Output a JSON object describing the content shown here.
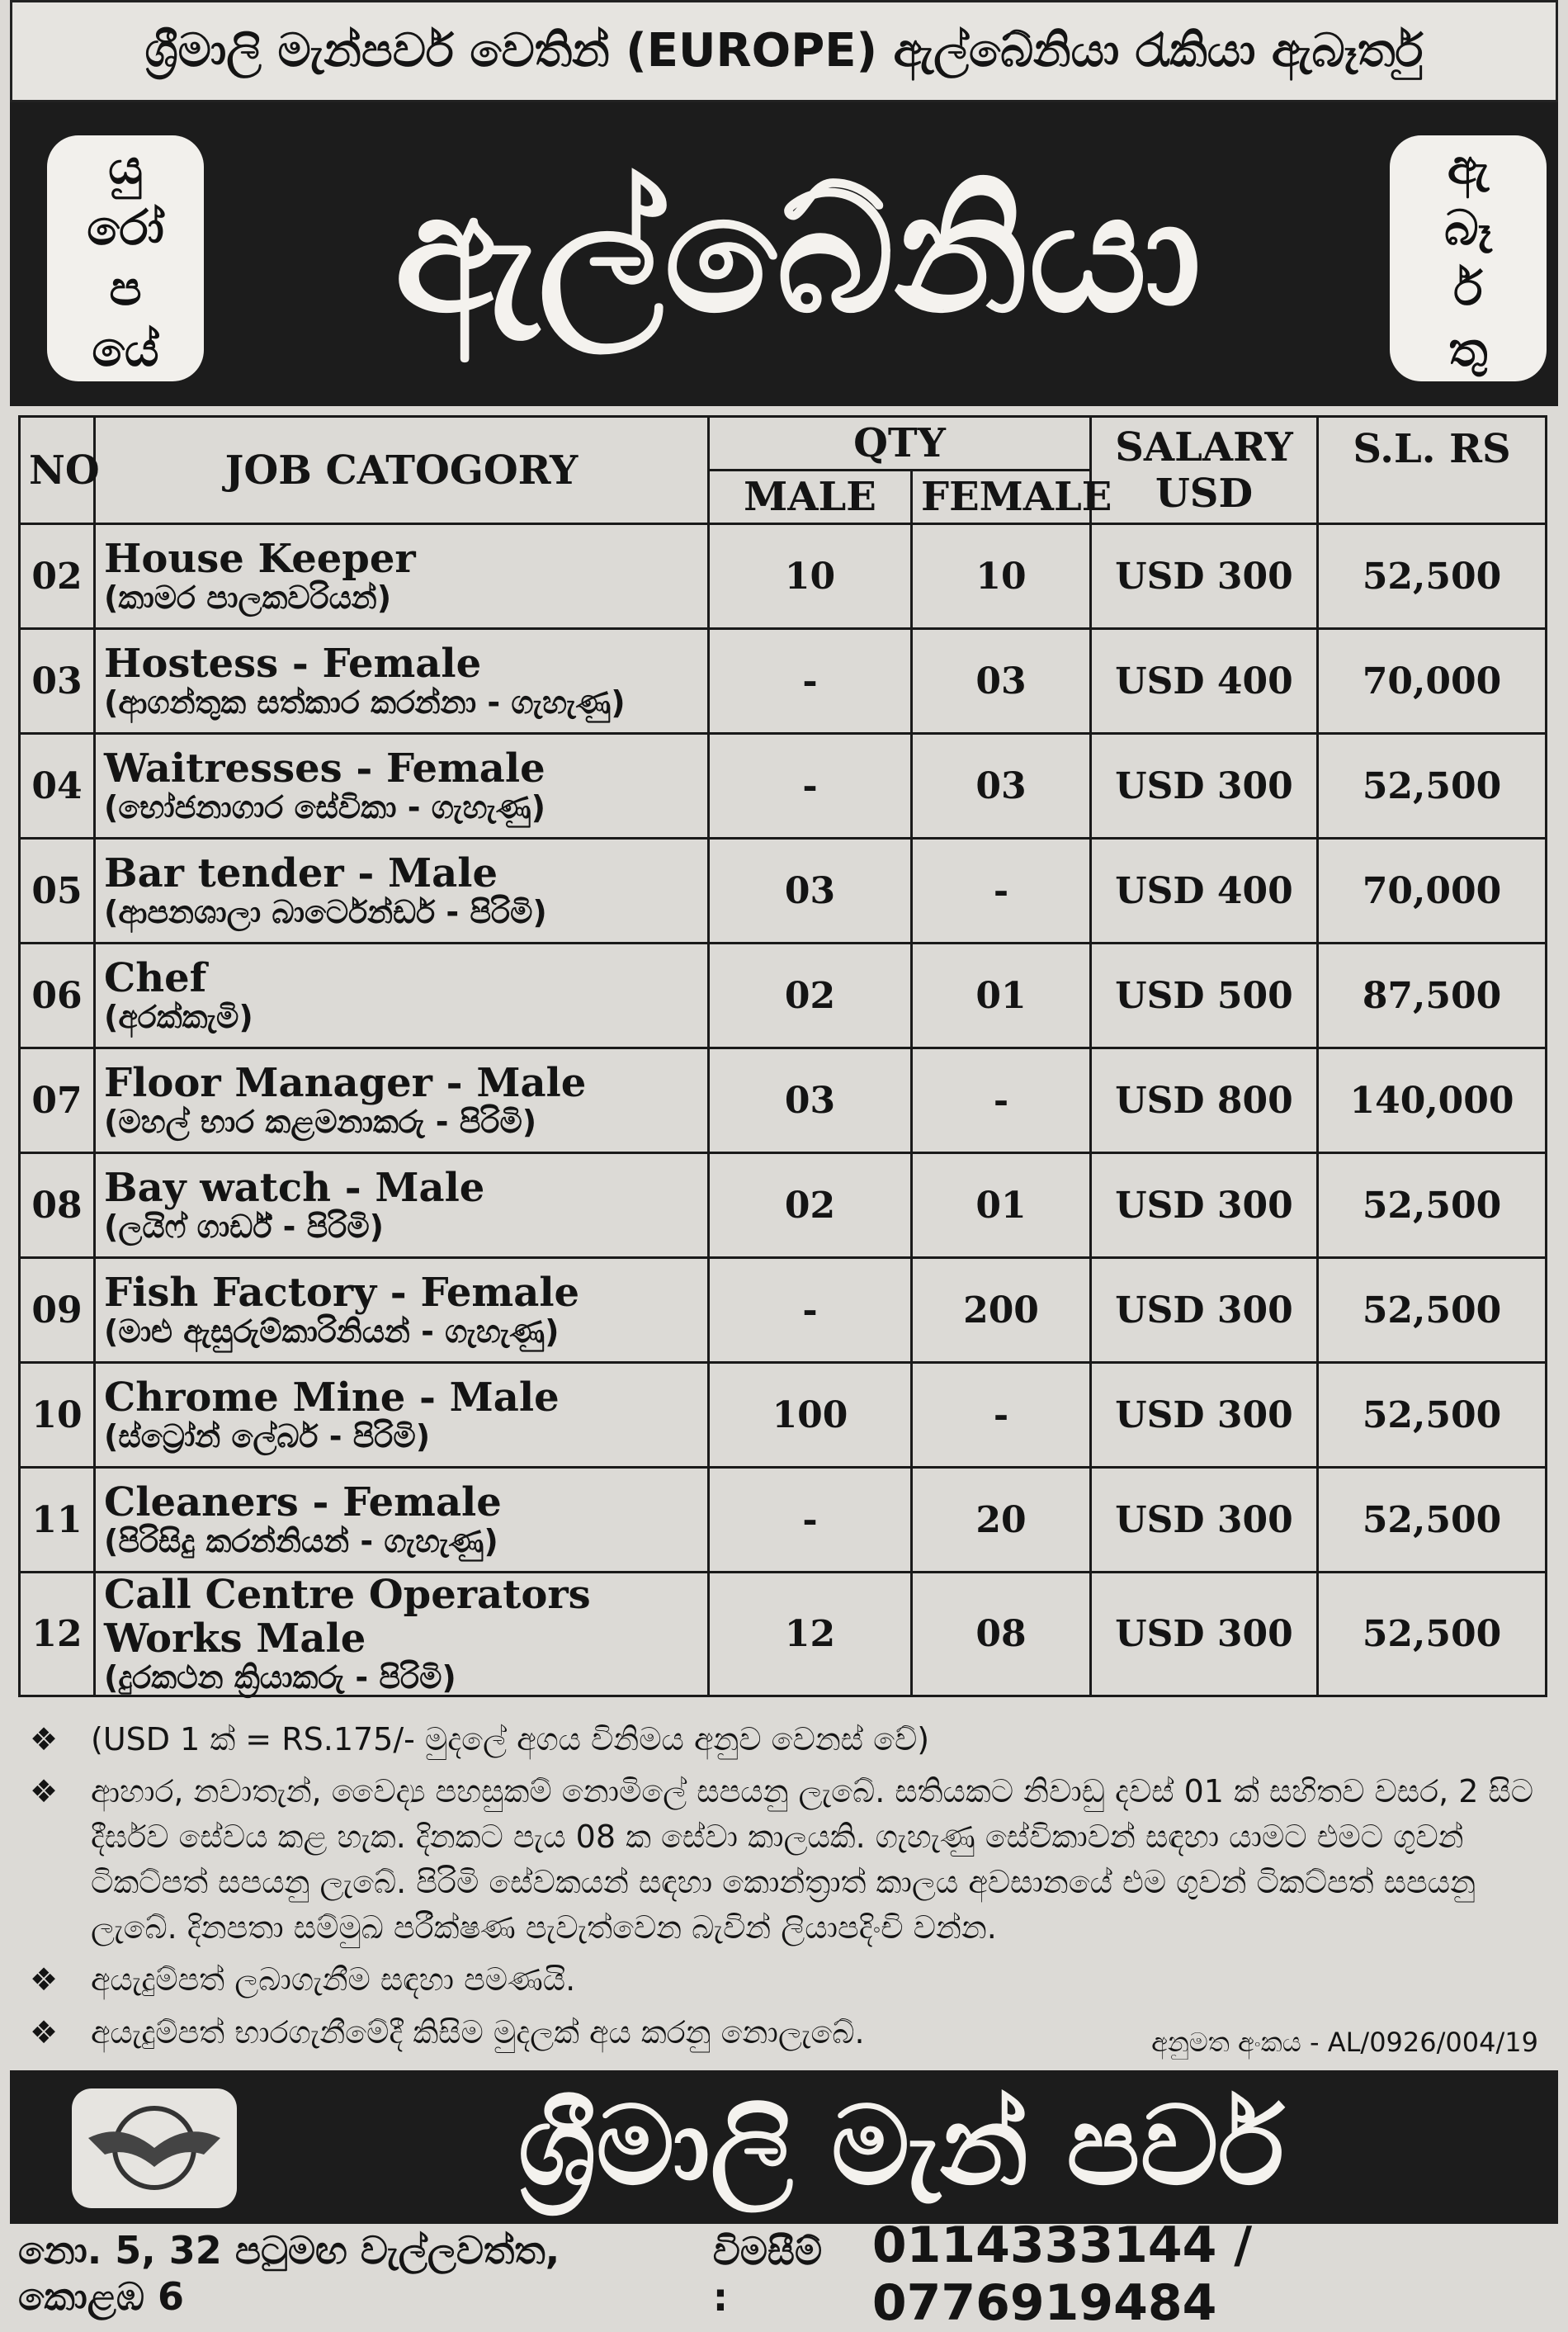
{
  "header": {
    "title": "ශ්‍රීමාලි මැන්පවර් වෙතින් (EUROPE) ඇල්බේනියා රැකියා ඇබෑර්තු"
  },
  "banner": {
    "left": [
      "යු",
      "රෝ",
      "ප",
      "යේ"
    ],
    "title": "ඇල්බේනියා",
    "right": [
      "ඇ",
      "බෑ",
      "ර්",
      "තු"
    ]
  },
  "table": {
    "headers": {
      "no": "NO",
      "job": "JOB CATOGORY",
      "qty": "QTY",
      "male": "MALE",
      "female": "FEMALE",
      "salary": [
        "SALARY",
        "USD"
      ],
      "sl": "S.L. RS"
    },
    "rows": [
      [
        "02",
        "House Keeper",
        "(කාමර පාලකවරියන්)",
        "10",
        "10",
        "USD 300",
        "52,500"
      ],
      [
        "03",
        "Hostess - Female",
        "(ආගන්තුක සත්කාර කරන්නා - ගැහැණු)",
        "-",
        "03",
        "USD 400",
        "70,000"
      ],
      [
        "04",
        "Waitresses - Female",
        "(භෝජනාගාර සේවිකා - ගැහැණු)",
        "-",
        "03",
        "USD 300",
        "52,500"
      ],
      [
        "05",
        "Bar tender - Male",
        "(ආපනශාලා බාර්ටෙන්ඩර් - පිරිමි)",
        "03",
        "-",
        "USD 400",
        "70,000"
      ],
      [
        "06",
        "Chef",
        "(අරක්කැමි)",
        "02",
        "01",
        "USD 500",
        "87,500"
      ],
      [
        "07",
        "Floor Manager - Male",
        "(මහල් භාර කළමනාකරු - පිරිමි)",
        "03",
        "-",
        "USD 800",
        "140,000"
      ],
      [
        "08",
        "Bay watch - Male",
        "(ලයිෆ් ගාර්ඩ් - පිරිමි)",
        "02",
        "01",
        "USD 300",
        "52,500"
      ],
      [
        "09",
        "Fish Factory - Female",
        "(මාළු ඇසුරුම්කාරිනියන් - ගැහැණු)",
        "-",
        "200",
        "USD 300",
        "52,500"
      ],
      [
        "10",
        "Chrome Mine - Male",
        "(ස්ට්‍රෝන් ලේබර් - පිරිමි)",
        "100",
        "-",
        "USD 300",
        "52,500"
      ],
      [
        "11",
        "Cleaners - Female",
        "(පිරිසිදු කරන්නියන් - ගැහැණු)",
        "-",
        "20",
        "USD 300",
        "52,500"
      ],
      [
        "12",
        "Call Centre Operators Works Male",
        "(දුරකථන ක්‍රියාකරු - පිරිමි)",
        "12",
        "08",
        "USD 300",
        "52,500"
      ]
    ]
  },
  "notes": [
    "(USD 1 ක් = RS.175/- මුදලේ අගය විනිමය අනුව වෙනස් වේ)",
    "ආහාර, නවාතැන්, වෛද්‍ය පහසුකම් නොමිලේ සපයනු ලැබේ. සතියකට නිවාඩු දවස් 01 ක් සහිතව වසර, 2 සිට දීර්ඝව සේවය කළ හැක. දිනකට පැය 08 ක සේවා කාලයකි. ගැහැණු සේවිකාවන් සඳහා යාමට එමට ගුවන් ටිකට්පත් සපයනු ලැබේ. පිරිමි සේවකයන් සඳහා කොන්ත්‍රාත් කාලය අවසානයේ එම ගුවන් ටිකට්පත් සපයනු ලැබේ. දිනපතා සම්මුඛ පරීක්ෂණ පැවැත්වෙන බැවින් ලියාපදිංචි වන්න.",
    "අයැදුම්පත් ලබාගැනීම සඳහා පමණයි.",
    "අයැදුම්පත් භාරගැනීමේදී කිසිම මුදලක් අය කරනු නොලැබේ."
  ],
  "approval": "අනුමත අංකය - AL/0926/004/19",
  "footer": {
    "name": "ශ්‍රීමාලි මැන් පවර්",
    "address": "නො. 5, 32 පටුමඟ වැල්ලවත්ත, කොළඹ 6",
    "inquiry": "විමසීම් :",
    "phones": "0114333144 / 0776919484"
  }
}
